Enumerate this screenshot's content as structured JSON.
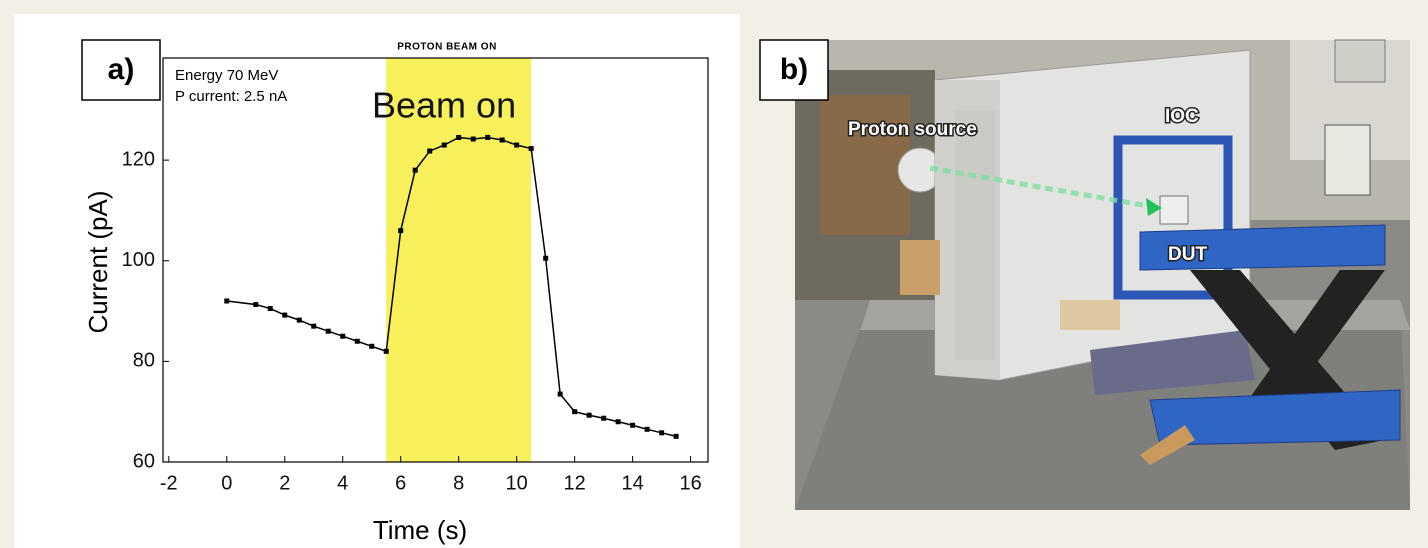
{
  "chart_data": {
    "type": "line",
    "panel_label": "a)",
    "title": "PROTON BEAM ON",
    "annotations": [
      "Energy 70 MeV",
      "P current: 2.5 nA",
      "Beam on"
    ],
    "x_label": "Time (s)",
    "y_label": "Current (pA)",
    "x": [
      0,
      1,
      1.5,
      2,
      2.5,
      3,
      3.5,
      4,
      4.5,
      5,
      5.5,
      6,
      6.5,
      7,
      7.5,
      8,
      8.5,
      9,
      9.5,
      10,
      10.5,
      11,
      11.5,
      12,
      12.5,
      13,
      13.5,
      14,
      14.5,
      15,
      15.5
    ],
    "values": [
      92,
      91.3,
      90.5,
      89.2,
      88.2,
      87,
      86,
      85,
      84,
      83,
      82,
      106,
      118,
      121.8,
      123,
      124.5,
      124.2,
      124.5,
      124,
      123,
      122.3,
      100.5,
      73.5,
      70,
      69.3,
      68.7,
      68,
      67.3,
      66.5,
      65.8,
      65.1
    ],
    "color": "#000000",
    "highlight": [
      5.5,
      10.5
    ],
    "highlight_color": "#f7f05a",
    "xlim": [
      -2.2,
      16.6
    ],
    "xticks": [
      -2,
      0,
      2,
      4,
      6,
      8,
      10,
      12,
      14,
      16
    ],
    "ylim": [
      60,
      140.3
    ],
    "yticks": [
      60,
      80,
      100,
      120
    ]
  },
  "photo": {
    "panel_label": "b)",
    "labels": [
      "Proton source",
      "IOC",
      "DUT"
    ]
  }
}
